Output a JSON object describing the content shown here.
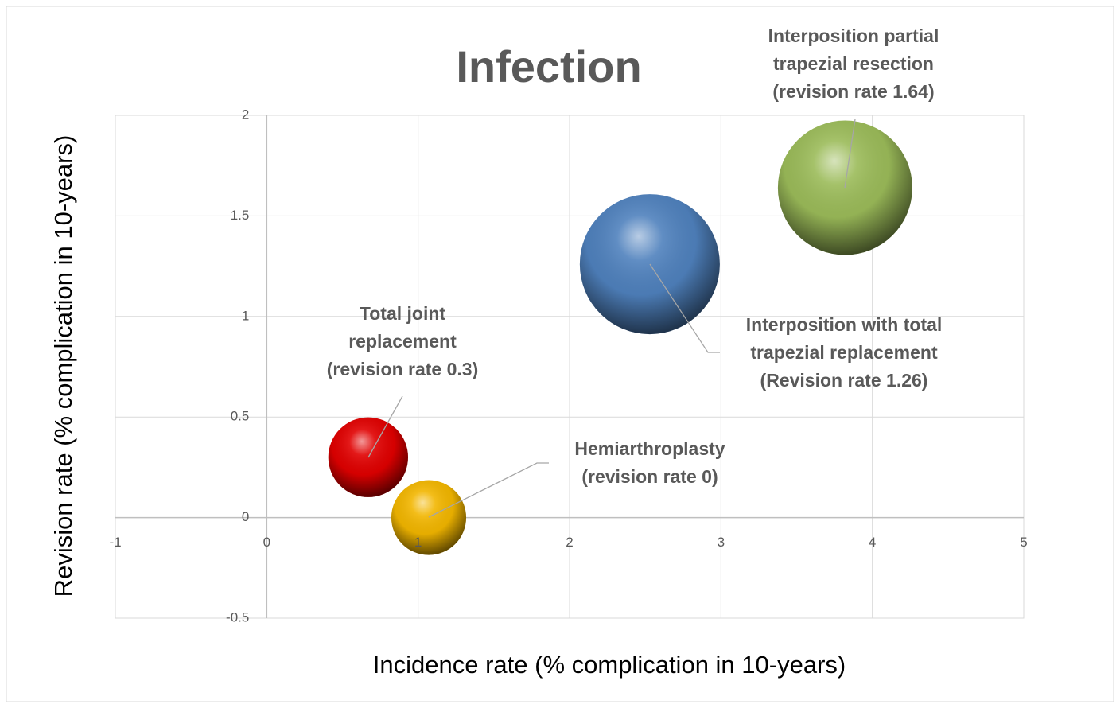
{
  "chart_data": {
    "type": "bubble",
    "title": "Infection",
    "x_label": "Incidence rate (% complication in 10-years)",
    "y_label": "Revision rate  (% complication in 10-years)",
    "xlim": [
      -1,
      5
    ],
    "xticks": [
      -1,
      0,
      1,
      2,
      3,
      4,
      5
    ],
    "ylim": [
      -0.5,
      2
    ],
    "yticks": [
      -0.5,
      0,
      0.5,
      1,
      1.5,
      2
    ],
    "grid": true,
    "series": [
      {
        "color": "#e00000",
        "x": [
          0.67
        ],
        "values": [
          0.3
        ],
        "sizes": [
          2.5
        ],
        "label": [
          "Total joint",
          "replacement",
          "(revision  rate 0.3)"
        ]
      },
      {
        "color": "#f2b600",
        "x": [
          1.07
        ],
        "values": [
          0
        ],
        "sizes": [
          2.2
        ],
        "label": [
          "Hemiarthroplasty",
          "(revision rate 0)"
        ]
      },
      {
        "color": "#4f81bd",
        "x": [
          2.53
        ],
        "values": [
          1.26
        ],
        "sizes": [
          7.7
        ],
        "label": [
          "Interposition with total",
          "trapezial replacement",
          "(Revision rate 1.26)"
        ]
      },
      {
        "color": "#9bbb59",
        "x": [
          3.82
        ],
        "values": [
          1.64
        ],
        "sizes": [
          7.1
        ],
        "label": [
          "Interposition partial",
          "trapezial resection",
          "(revision rate 1.64)"
        ]
      }
    ]
  }
}
